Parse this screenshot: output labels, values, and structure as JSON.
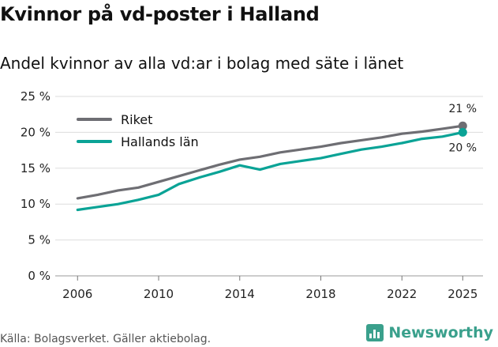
{
  "title": "Kvinnor på vd-poster i Halland",
  "subtitle": "Andel kvinnor av alla vd:ar i bolag med säte i länet",
  "source": "Källa: Bolagsverket. Gäller aktiebolag.",
  "brand": "Newsworthy",
  "colors": {
    "riket": "#6e6e73",
    "halland": "#0aa396",
    "grid": "#dddddd",
    "brand": "#3aa08c"
  },
  "chart_data": {
    "type": "line",
    "title": "Kvinnor på vd-poster i Halland",
    "subtitle": "Andel kvinnor av alla vd:ar i bolag med säte i länet",
    "xlabel": "",
    "ylabel": "",
    "x": [
      2006,
      2007,
      2008,
      2009,
      2010,
      2011,
      2012,
      2013,
      2014,
      2015,
      2016,
      2017,
      2018,
      2019,
      2020,
      2021,
      2022,
      2023,
      2024,
      2025
    ],
    "xlim": [
      2004.9,
      2026.0
    ],
    "ylim": [
      0,
      25
    ],
    "xticks": [
      2006,
      2010,
      2014,
      2018,
      2022,
      2025
    ],
    "xtick_labels": [
      "2006",
      "2010",
      "2014",
      "2018",
      "2022",
      "2025"
    ],
    "yticks": [
      0,
      5,
      10,
      15,
      20,
      25
    ],
    "ytick_labels": [
      "0 %",
      "5 %",
      "10 %",
      "15 %",
      "20 %",
      "25 %"
    ],
    "grid": true,
    "legend_position": "top-left",
    "series": [
      {
        "name": "Riket",
        "color": "#6e6e73",
        "values": [
          10.8,
          11.3,
          11.9,
          12.3,
          13.1,
          13.9,
          14.7,
          15.5,
          16.2,
          16.6,
          17.2,
          17.6,
          18.0,
          18.5,
          18.9,
          19.3,
          19.8,
          20.1,
          20.5,
          20.9
        ],
        "end_label": "21 %"
      },
      {
        "name": "Hallands län",
        "color": "#0aa396",
        "values": [
          9.2,
          9.6,
          10.0,
          10.6,
          11.3,
          12.8,
          13.7,
          14.5,
          15.4,
          14.8,
          15.6,
          16.0,
          16.4,
          17.0,
          17.6,
          18.0,
          18.5,
          19.1,
          19.4,
          20.0
        ],
        "end_label": "20 %"
      }
    ]
  }
}
